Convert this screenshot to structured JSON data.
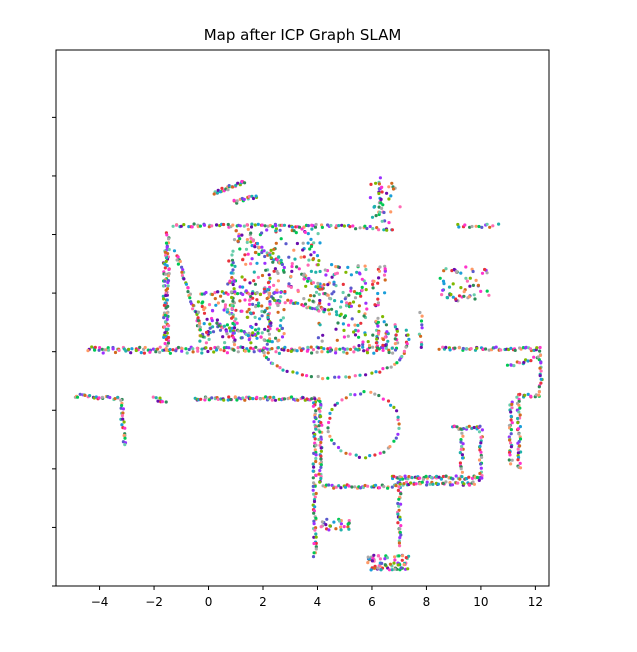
{
  "chart_data": {
    "type": "scatter",
    "title": "Map after ICP Graph SLAM",
    "xlabel": "",
    "ylabel": "",
    "xlim": [
      -5.6,
      12.5
    ],
    "ylim": [
      -7.3,
      11.0
    ],
    "xticks": [
      -4,
      -2,
      0,
      2,
      4,
      6,
      8,
      10,
      12
    ],
    "xtick_labels": [
      "−4",
      "−2",
      "0",
      "2",
      "4",
      "6",
      "8",
      "10",
      "12"
    ],
    "yticks": [
      -7.3,
      -5.3,
      -3.3,
      -1.3,
      0.7,
      2.7,
      4.7,
      6.7,
      8.7
    ],
    "ytick_labels": [
      "",
      "",
      "",
      "",
      "",
      "",
      "",
      "",
      ""
    ],
    "grid": false,
    "legend": "none",
    "point_colors": [
      "#6a0dad",
      "#7fb800",
      "#1a9ed9",
      "#e8323c",
      "#ff33cc",
      "#2e8b57",
      "#a9a9a9",
      "#ff9966",
      "#00c853",
      "#5a5acd",
      "#9b30ff",
      "#66cdaa",
      "#d2691e",
      "#ff69b4",
      "#20b2aa"
    ],
    "point_groups": [
      {
        "name": "corridor-top-wall",
        "kind": "line",
        "from": [
          -4.4,
          0.8
        ],
        "to": [
          6.8,
          0.8
        ],
        "n": 120
      },
      {
        "name": "corridor-top-wall-b",
        "kind": "line",
        "from": [
          -4.4,
          0.7
        ],
        "to": [
          6.8,
          0.7
        ],
        "n": 60
      },
      {
        "name": "corridor-bottom-wall",
        "kind": "line",
        "from": [
          -0.5,
          -0.9
        ],
        "to": [
          4.0,
          -0.9
        ],
        "n": 70
      },
      {
        "name": "left-stubs",
        "kind": "line",
        "from": [
          -4.9,
          -0.8
        ],
        "to": [
          -3.3,
          -0.9
        ],
        "n": 24
      },
      {
        "name": "left-stub-2",
        "kind": "line",
        "from": [
          -2.0,
          -0.9
        ],
        "to": [
          -1.6,
          -1.0
        ],
        "n": 8
      },
      {
        "name": "left-drop",
        "kind": "line",
        "from": [
          -3.2,
          -0.9
        ],
        "to": [
          -3.1,
          -2.5
        ],
        "n": 22
      },
      {
        "name": "right-corridor-top",
        "kind": "line",
        "from": [
          8.5,
          0.8
        ],
        "to": [
          12.1,
          0.8
        ],
        "n": 50
      },
      {
        "name": "right-corridor-right",
        "kind": "line",
        "from": [
          12.2,
          0.8
        ],
        "to": [
          12.2,
          -0.8
        ],
        "n": 20
      },
      {
        "name": "right-inner-wall",
        "kind": "line",
        "from": [
          11.3,
          -0.8
        ],
        "to": [
          12.1,
          -0.8
        ],
        "n": 12
      },
      {
        "name": "right-column",
        "kind": "line",
        "from": [
          11.4,
          -0.8
        ],
        "to": [
          11.4,
          -3.3
        ],
        "n": 35
      },
      {
        "name": "right-column-b",
        "kind": "line",
        "from": [
          11.1,
          -1.0
        ],
        "to": [
          11.1,
          -3.1
        ],
        "n": 28
      },
      {
        "name": "stair-upper",
        "kind": "line",
        "from": [
          8.9,
          -1.9
        ],
        "to": [
          10.0,
          -1.9
        ],
        "n": 18
      },
      {
        "name": "stair-upper-b",
        "kind": "line",
        "from": [
          10.0,
          -1.9
        ],
        "to": [
          10.0,
          -3.7
        ],
        "n": 22
      },
      {
        "name": "middle-horizontal",
        "kind": "line",
        "from": [
          6.7,
          -3.6
        ],
        "to": [
          10.0,
          -3.6
        ],
        "n": 55
      },
      {
        "name": "middle-horizontal-b",
        "kind": "line",
        "from": [
          6.9,
          -3.8
        ],
        "to": [
          9.8,
          -3.8
        ],
        "n": 45
      },
      {
        "name": "lower-vertical-left",
        "kind": "line",
        "from": [
          3.9,
          -0.9
        ],
        "to": [
          3.9,
          -6.3
        ],
        "n": 70
      },
      {
        "name": "lower-vertical-left-b",
        "kind": "line",
        "from": [
          4.1,
          -0.9
        ],
        "to": [
          4.1,
          -3.8
        ],
        "n": 40
      },
      {
        "name": "lower-vertical-right",
        "kind": "line",
        "from": [
          7.0,
          -3.7
        ],
        "to": [
          7.0,
          -5.9
        ],
        "n": 30
      },
      {
        "name": "lower-horiz",
        "kind": "line",
        "from": [
          4.2,
          -3.9
        ],
        "to": [
          7.0,
          -3.9
        ],
        "n": 38
      },
      {
        "name": "bottom-cluster",
        "kind": "blob",
        "center": [
          6.6,
          -6.5
        ],
        "spread": [
          0.8,
          0.25
        ],
        "n": 70
      },
      {
        "name": "mid-cluster",
        "kind": "blob",
        "center": [
          4.6,
          -5.2
        ],
        "spread": [
          0.6,
          0.2
        ],
        "n": 25
      },
      {
        "name": "loop-circle",
        "kind": "ring",
        "center": [
          5.7,
          -1.8
        ],
        "radius": [
          1.3,
          1.1
        ],
        "n": 45
      },
      {
        "name": "loop-circle-upper",
        "kind": "ring",
        "center": [
          4.6,
          0.8
        ],
        "radius": [
          2.6,
          1.0
        ],
        "n": 40,
        "half": "lower"
      },
      {
        "name": "room-top-wall",
        "kind": "line",
        "from": [
          -1.3,
          5.0
        ],
        "to": [
          3.8,
          5.0
        ],
        "n": 60
      },
      {
        "name": "room-left-wall",
        "kind": "line",
        "from": [
          -1.5,
          4.8
        ],
        "to": [
          -1.5,
          0.8
        ],
        "n": 50
      },
      {
        "name": "room-left-wall-b",
        "kind": "line",
        "from": [
          -1.6,
          4.2
        ],
        "to": [
          -1.6,
          1.0
        ],
        "n": 40
      },
      {
        "name": "room-diagonal-1",
        "kind": "line",
        "from": [
          -1.2,
          4.1
        ],
        "to": [
          -0.2,
          1.2
        ],
        "n": 40
      },
      {
        "name": "room-diagonal-2",
        "kind": "line",
        "from": [
          0.3,
          1.6
        ],
        "to": [
          2.2,
          1.1
        ],
        "n": 30
      },
      {
        "name": "room-diagonal-3",
        "kind": "line",
        "from": [
          1.6,
          4.4
        ],
        "to": [
          2.8,
          3.6
        ],
        "n": 25
      },
      {
        "name": "room-inner-vertical",
        "kind": "line",
        "from": [
          0.9,
          3.6
        ],
        "to": [
          0.9,
          0.9
        ],
        "n": 30
      },
      {
        "name": "room-inner-vertical-b",
        "kind": "line",
        "from": [
          2.2,
          3.3
        ],
        "to": [
          2.2,
          1.0
        ],
        "n": 25
      },
      {
        "name": "room-inner-horiz",
        "kind": "line",
        "from": [
          -0.3,
          2.7
        ],
        "to": [
          2.6,
          2.7
        ],
        "n": 35
      },
      {
        "name": "room-right-cluster",
        "kind": "blob",
        "center": [
          5.3,
          2.3
        ],
        "spread": [
          1.3,
          1.4
        ],
        "n": 160
      },
      {
        "name": "room-right-vertical",
        "kind": "line",
        "from": [
          6.2,
          1.8
        ],
        "to": [
          6.2,
          0.8
        ],
        "n": 15
      },
      {
        "name": "room-right-vertical-b",
        "kind": "line",
        "from": [
          6.9,
          1.6
        ],
        "to": [
          6.9,
          0.8
        ],
        "n": 12
      },
      {
        "name": "room-diagonal-4",
        "kind": "line",
        "from": [
          3.4,
          3.4
        ],
        "to": [
          4.4,
          2.6
        ],
        "n": 18
      },
      {
        "name": "room-diagonal-5",
        "kind": "line",
        "from": [
          2.9,
          2.4
        ],
        "to": [
          4.4,
          2.1
        ],
        "n": 20
      },
      {
        "name": "room-top-right-wall",
        "kind": "line",
        "from": [
          3.8,
          5.0
        ],
        "to": [
          6.8,
          4.9
        ],
        "n": 30
      },
      {
        "name": "top-left-slant",
        "kind": "line",
        "from": [
          0.2,
          6.1
        ],
        "to": [
          1.3,
          6.5
        ],
        "n": 25
      },
      {
        "name": "top-left-slant-b",
        "kind": "line",
        "from": [
          0.9,
          5.8
        ],
        "to": [
          1.8,
          6.0
        ],
        "n": 15
      },
      {
        "name": "top-right-vertical",
        "kind": "line",
        "from": [
          6.3,
          6.6
        ],
        "to": [
          6.3,
          5.4
        ],
        "n": 14
      },
      {
        "name": "top-right-bits",
        "kind": "blob",
        "center": [
          6.5,
          5.8
        ],
        "spread": [
          0.6,
          0.7
        ],
        "n": 30
      },
      {
        "name": "right-room-cluster",
        "kind": "blob",
        "center": [
          9.4,
          3.0
        ],
        "spread": [
          0.9,
          0.6
        ],
        "n": 45
      },
      {
        "name": "top-right-stub",
        "kind": "line",
        "from": [
          9.1,
          5.0
        ],
        "to": [
          10.6,
          5.0
        ],
        "n": 14
      },
      {
        "name": "right-diagonal",
        "kind": "line",
        "from": [
          11.0,
          0.2
        ],
        "to": [
          12.1,
          0.5
        ],
        "n": 14
      },
      {
        "name": "room-center-scatter",
        "kind": "blob",
        "center": [
          2.4,
          3.6
        ],
        "spread": [
          1.7,
          1.3
        ],
        "n": 180
      },
      {
        "name": "room-lower-scatter",
        "kind": "blob",
        "center": [
          1.2,
          1.8
        ],
        "spread": [
          1.6,
          0.8
        ],
        "n": 140
      },
      {
        "name": "doorway-right",
        "kind": "line",
        "from": [
          7.3,
          1.4
        ],
        "to": [
          7.3,
          0.8
        ],
        "n": 8
      },
      {
        "name": "doorway-top",
        "kind": "line",
        "from": [
          7.8,
          2.0
        ],
        "to": [
          7.8,
          0.8
        ],
        "n": 10
      },
      {
        "name": "right-top-room-wall",
        "kind": "line",
        "from": [
          8.6,
          2.6
        ],
        "to": [
          9.6,
          2.6
        ],
        "n": 10
      },
      {
        "name": "right-mid-box",
        "kind": "line",
        "from": [
          9.3,
          -2.0
        ],
        "to": [
          9.3,
          -3.4
        ],
        "n": 18
      }
    ]
  }
}
